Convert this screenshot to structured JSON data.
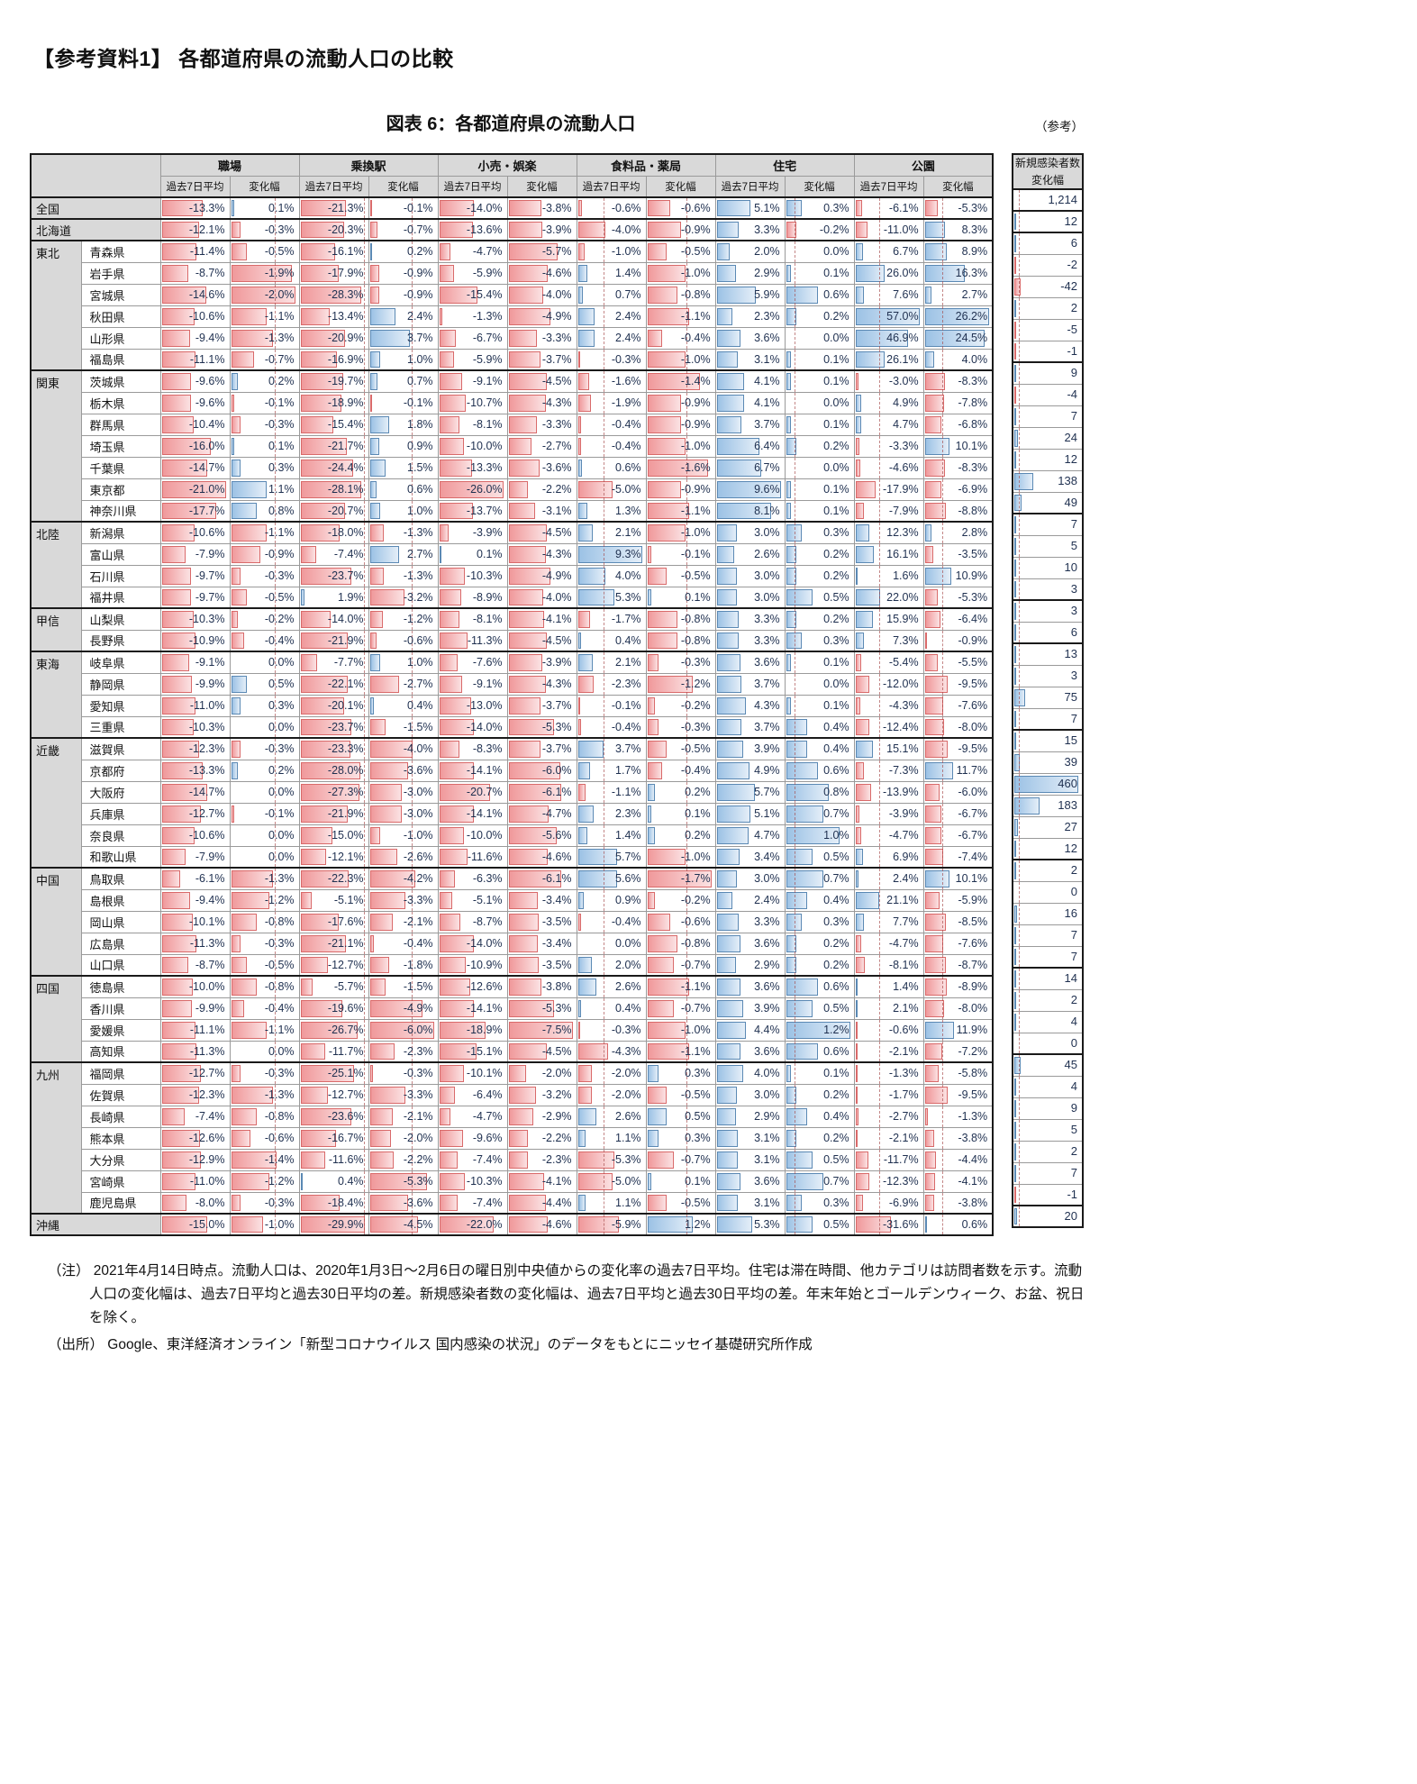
{
  "page": {
    "heading": "【参考資料1】 各都道府県の流動人口の比較",
    "figure_title": "図表 6：各都道府県の流動人口",
    "reference_label": "（参考）",
    "notes": {
      "note": "（注） 2021年4月14日時点。流動人口は、2020年1月3日～2月6日の曜日別中央値からの変化率の過去7日平均。住宅は滞在時間、他カテゴリは訪問者数を示す。流動人口の変化幅は、過去7日平均と過去30日平均の差。新規感染者数の変化幅は、過去7日平均と過去30日平均の差。年末年始とゴールデンウィーク、お盆、祝日を除く。",
      "source": "（出所） Google、東洋経済オンライン「新型コロナウイルス 国内感染の状況」のデータをもとにニッセイ基礎研究所作成"
    }
  },
  "colors": {
    "negative_bar_fill": "#f0999b",
    "negative_bar_border": "#d96a6a",
    "positive_bar_fill": "#9cc2e5",
    "positive_bar_border": "#5b89b4",
    "header_bg": "#d9d9d9",
    "value_text": "#1f3050"
  },
  "table": {
    "categories": [
      "職場",
      "乗換駅",
      "小売・娯楽",
      "食料品・薬局",
      "住宅",
      "公園"
    ],
    "sub_headers": [
      "過去7日平均",
      "変化幅"
    ],
    "infection_header_line1": "新規感染者数",
    "infection_header_line2": "変化幅",
    "regions": [
      {
        "region": "全国",
        "merged": true,
        "rows": [
          {
            "name": "全国",
            "values": [
              -13.3,
              0.1,
              -21.3,
              -0.1,
              -14.0,
              -3.8,
              -0.6,
              -0.6,
              5.1,
              0.3,
              -6.1,
              -5.3
            ],
            "infections": 1214
          }
        ]
      },
      {
        "region": "北海道",
        "merged": true,
        "rows": [
          {
            "name": "北海道",
            "values": [
              -12.1,
              -0.3,
              -20.3,
              -0.7,
              -13.6,
              -3.9,
              -4.0,
              -0.9,
              3.3,
              -0.2,
              -11.0,
              8.3
            ],
            "infections": 12
          }
        ]
      },
      {
        "region": "東北",
        "rows": [
          {
            "name": "青森県",
            "values": [
              -11.4,
              -0.5,
              -16.1,
              0.2,
              -4.7,
              -5.7,
              -1.0,
              -0.5,
              2.0,
              0.0,
              6.7,
              8.9
            ],
            "infections": 6
          },
          {
            "name": "岩手県",
            "values": [
              -8.7,
              -1.9,
              -17.9,
              -0.9,
              -5.9,
              -4.6,
              1.4,
              -1.0,
              2.9,
              0.1,
              26.0,
              16.3
            ],
            "infections": -2
          },
          {
            "name": "宮城県",
            "values": [
              -14.6,
              -2.0,
              -28.3,
              -0.9,
              -15.4,
              -4.0,
              0.7,
              -0.8,
              5.9,
              0.6,
              7.6,
              2.7
            ],
            "infections": -42
          },
          {
            "name": "秋田県",
            "values": [
              -10.6,
              -1.1,
              -13.4,
              2.4,
              -1.3,
              -4.9,
              2.4,
              -1.1,
              2.3,
              0.2,
              57.0,
              26.2
            ],
            "infections": 2
          },
          {
            "name": "山形県",
            "values": [
              -9.4,
              -1.3,
              -20.9,
              3.7,
              -6.7,
              -3.3,
              2.4,
              -0.4,
              3.6,
              0.0,
              46.9,
              24.5
            ],
            "infections": -5
          },
          {
            "name": "福島県",
            "values": [
              -11.1,
              -0.7,
              -16.9,
              1.0,
              -5.9,
              -3.7,
              -0.3,
              -1.0,
              3.1,
              0.1,
              26.1,
              4.0
            ],
            "infections": -1
          }
        ]
      },
      {
        "region": "関東",
        "rows": [
          {
            "name": "茨城県",
            "values": [
              -9.6,
              0.2,
              -19.7,
              0.7,
              -9.1,
              -4.5,
              -1.6,
              -1.4,
              4.1,
              0.1,
              -3.0,
              -8.3
            ],
            "infections": 9
          },
          {
            "name": "栃木県",
            "values": [
              -9.6,
              -0.1,
              -18.9,
              -0.1,
              -10.7,
              -4.3,
              -1.9,
              -0.9,
              4.1,
              0.0,
              4.9,
              -7.8
            ],
            "infections": -4
          },
          {
            "name": "群馬県",
            "values": [
              -10.4,
              -0.3,
              -15.4,
              1.8,
              -8.1,
              -3.3,
              -0.4,
              -0.9,
              3.7,
              0.1,
              4.7,
              -6.8
            ],
            "infections": 7
          },
          {
            "name": "埼玉県",
            "values": [
              -16.0,
              0.1,
              -21.7,
              0.9,
              -10.0,
              -2.7,
              -0.4,
              -1.0,
              6.4,
              0.2,
              -3.3,
              10.1
            ],
            "infections": 24
          },
          {
            "name": "千葉県",
            "values": [
              -14.7,
              0.3,
              -24.4,
              1.5,
              -13.3,
              -3.6,
              0.6,
              -1.6,
              6.7,
              0.0,
              -4.6,
              -8.3
            ],
            "infections": 12
          },
          {
            "name": "東京都",
            "values": [
              -21.0,
              1.1,
              -28.1,
              0.6,
              -26.0,
              -2.2,
              -5.0,
              -0.9,
              9.6,
              0.1,
              -17.9,
              -6.9
            ],
            "infections": 138
          },
          {
            "name": "神奈川県",
            "values": [
              -17.7,
              0.8,
              -20.7,
              1.0,
              -13.7,
              -3.1,
              1.3,
              -1.1,
              8.1,
              0.1,
              -7.9,
              -8.8
            ],
            "infections": 49
          }
        ]
      },
      {
        "region": "北陸",
        "rows": [
          {
            "name": "新潟県",
            "values": [
              -10.6,
              -1.1,
              -18.0,
              -1.3,
              -3.9,
              -4.5,
              2.1,
              -1.0,
              3.0,
              0.3,
              12.3,
              2.8
            ],
            "infections": 7
          },
          {
            "name": "富山県",
            "values": [
              -7.9,
              -0.9,
              -7.4,
              2.7,
              0.1,
              -4.3,
              9.3,
              -0.1,
              2.6,
              0.2,
              16.1,
              -3.5
            ],
            "infections": 5
          },
          {
            "name": "石川県",
            "values": [
              -9.7,
              -0.3,
              -23.7,
              -1.3,
              -10.3,
              -4.9,
              4.0,
              -0.5,
              3.0,
              0.2,
              1.6,
              10.9
            ],
            "infections": 10
          },
          {
            "name": "福井県",
            "values": [
              -9.7,
              -0.5,
              1.9,
              -3.2,
              -8.9,
              -4.0,
              5.3,
              0.1,
              3.0,
              0.5,
              22.0,
              -5.3
            ],
            "infections": 3
          }
        ]
      },
      {
        "region": "甲信",
        "rows": [
          {
            "name": "山梨県",
            "values": [
              -10.3,
              -0.2,
              -14.0,
              -1.2,
              -8.1,
              -4.1,
              -1.7,
              -0.8,
              3.3,
              0.2,
              15.9,
              -6.4
            ],
            "infections": 3
          },
          {
            "name": "長野県",
            "values": [
              -10.9,
              -0.4,
              -21.9,
              -0.6,
              -11.3,
              -4.5,
              0.4,
              -0.8,
              3.3,
              0.3,
              7.3,
              -0.9
            ],
            "infections": 6
          }
        ]
      },
      {
        "region": "東海",
        "rows": [
          {
            "name": "岐阜県",
            "values": [
              -9.1,
              0.0,
              -7.7,
              1.0,
              -7.6,
              -3.9,
              2.1,
              -0.3,
              3.6,
              0.1,
              -5.4,
              -5.5
            ],
            "infections": 13
          },
          {
            "name": "静岡県",
            "values": [
              -9.9,
              0.5,
              -22.1,
              -2.7,
              -9.1,
              -4.3,
              -2.3,
              -1.2,
              3.7,
              0.0,
              -12.0,
              -9.5
            ],
            "infections": 3
          },
          {
            "name": "愛知県",
            "values": [
              -11.0,
              0.3,
              -20.1,
              0.4,
              -13.0,
              -3.7,
              -0.1,
              -0.2,
              4.3,
              0.1,
              -4.3,
              -7.6
            ],
            "infections": 75
          },
          {
            "name": "三重県",
            "values": [
              -10.3,
              0.0,
              -23.7,
              -1.5,
              -14.0,
              -5.3,
              -0.4,
              -0.3,
              3.7,
              0.4,
              -12.4,
              -8.0
            ],
            "infections": 7
          }
        ]
      },
      {
        "region": "近畿",
        "rows": [
          {
            "name": "滋賀県",
            "values": [
              -12.3,
              -0.3,
              -23.3,
              -4.0,
              -8.3,
              -3.7,
              3.7,
              -0.5,
              3.9,
              0.4,
              15.1,
              -9.5
            ],
            "infections": 15
          },
          {
            "name": "京都府",
            "values": [
              -13.3,
              0.2,
              -28.0,
              -3.6,
              -14.1,
              -6.0,
              1.7,
              -0.4,
              4.9,
              0.6,
              -7.3,
              11.7
            ],
            "infections": 39
          },
          {
            "name": "大阪府",
            "values": [
              -14.7,
              0.0,
              -27.3,
              -3.0,
              -20.7,
              -6.1,
              -1.1,
              0.2,
              5.7,
              0.8,
              -13.9,
              -6.0
            ],
            "infections": 460
          },
          {
            "name": "兵庫県",
            "values": [
              -12.7,
              -0.1,
              -21.9,
              -3.0,
              -14.1,
              -4.7,
              2.3,
              0.1,
              5.1,
              0.7,
              -3.9,
              -6.7
            ],
            "infections": 183
          },
          {
            "name": "奈良県",
            "values": [
              -10.6,
              0.0,
              -15.0,
              -1.0,
              -10.0,
              -5.6,
              1.4,
              0.2,
              4.7,
              1.0,
              -4.7,
              -6.7
            ],
            "infections": 27
          },
          {
            "name": "和歌山県",
            "values": [
              -7.9,
              0.0,
              -12.1,
              -2.6,
              -11.6,
              -4.6,
              5.7,
              -1.0,
              3.4,
              0.5,
              6.9,
              -7.4
            ],
            "infections": 12
          }
        ]
      },
      {
        "region": "中国",
        "rows": [
          {
            "name": "鳥取県",
            "values": [
              -6.1,
              -1.3,
              -22.3,
              -4.2,
              -6.3,
              -6.1,
              5.6,
              -1.7,
              3.0,
              0.7,
              2.4,
              10.1
            ],
            "infections": 2
          },
          {
            "name": "島根県",
            "values": [
              -9.4,
              -1.2,
              -5.1,
              -3.3,
              -5.1,
              -3.4,
              0.9,
              -0.2,
              2.4,
              0.4,
              21.1,
              -5.9
            ],
            "infections": 0
          },
          {
            "name": "岡山県",
            "values": [
              -10.1,
              -0.8,
              -17.6,
              -2.1,
              -8.7,
              -3.5,
              -0.4,
              -0.6,
              3.3,
              0.3,
              7.7,
              -8.5
            ],
            "infections": 16
          },
          {
            "name": "広島県",
            "values": [
              -11.3,
              -0.3,
              -21.1,
              -0.4,
              -14.0,
              -3.4,
              0.0,
              -0.8,
              3.6,
              0.2,
              -4.7,
              -7.6
            ],
            "infections": 7
          },
          {
            "name": "山口県",
            "values": [
              -8.7,
              -0.5,
              -12.7,
              -1.8,
              -10.9,
              -3.5,
              2.0,
              -0.7,
              2.9,
              0.2,
              -8.1,
              -8.7
            ],
            "infections": 7
          }
        ]
      },
      {
        "region": "四国",
        "rows": [
          {
            "name": "徳島県",
            "values": [
              -10.0,
              -0.8,
              -5.7,
              -1.5,
              -12.6,
              -3.8,
              2.6,
              -1.1,
              3.6,
              0.6,
              1.4,
              -8.9
            ],
            "infections": 14
          },
          {
            "name": "香川県",
            "values": [
              -9.9,
              -0.4,
              -19.6,
              -4.9,
              -14.1,
              -5.3,
              0.4,
              -0.7,
              3.9,
              0.5,
              2.1,
              -8.0
            ],
            "infections": 2
          },
          {
            "name": "愛媛県",
            "values": [
              -11.1,
              -1.1,
              -26.7,
              -6.0,
              -18.9,
              -7.5,
              -0.3,
              -1.0,
              4.4,
              1.2,
              -0.6,
              11.9
            ],
            "infections": 4
          },
          {
            "name": "高知県",
            "values": [
              -11.3,
              0.0,
              -11.7,
              -2.3,
              -15.1,
              -4.5,
              -4.3,
              -1.1,
              3.6,
              0.6,
              -2.1,
              -7.2
            ],
            "infections": 0
          }
        ]
      },
      {
        "region": "九州",
        "rows": [
          {
            "name": "福岡県",
            "values": [
              -12.7,
              -0.3,
              -25.1,
              -0.3,
              -10.1,
              -2.0,
              -2.0,
              0.3,
              4.0,
              0.1,
              -1.3,
              -5.8
            ],
            "infections": 45
          },
          {
            "name": "佐賀県",
            "values": [
              -12.3,
              -1.3,
              -12.7,
              -3.3,
              -6.4,
              -3.2,
              -2.0,
              -0.5,
              3.0,
              0.2,
              -1.7,
              -9.5
            ],
            "infections": 4
          },
          {
            "name": "長崎県",
            "values": [
              -7.4,
              -0.8,
              -23.6,
              -2.1,
              -4.7,
              -2.9,
              2.6,
              0.5,
              2.9,
              0.4,
              -2.7,
              -1.3
            ],
            "infections": 9
          },
          {
            "name": "熊本県",
            "values": [
              -12.6,
              -0.6,
              -16.7,
              -2.0,
              -9.6,
              -2.2,
              1.1,
              0.3,
              3.1,
              0.2,
              -2.1,
              -3.8
            ],
            "infections": 5
          },
          {
            "name": "大分県",
            "values": [
              -12.9,
              -1.4,
              -11.6,
              -2.2,
              -7.4,
              -2.3,
              -5.3,
              -0.7,
              3.1,
              0.5,
              -11.7,
              -4.4
            ],
            "infections": 2
          },
          {
            "name": "宮崎県",
            "values": [
              -11.0,
              -1.2,
              0.4,
              -5.3,
              -10.3,
              -4.1,
              -5.0,
              0.1,
              3.6,
              0.7,
              -12.3,
              -4.1
            ],
            "infections": 7
          },
          {
            "name": "鹿児島県",
            "values": [
              -8.0,
              -0.3,
              -18.4,
              -3.6,
              -7.4,
              -4.4,
              1.1,
              -0.5,
              3.1,
              0.3,
              -6.9,
              -3.8
            ],
            "infections": -1
          }
        ]
      },
      {
        "region": "沖縄",
        "merged": true,
        "rows": [
          {
            "name": "沖縄",
            "values": [
              -15.0,
              -1.0,
              -29.9,
              -4.5,
              -22.0,
              -4.6,
              -5.9,
              1.2,
              5.3,
              0.5,
              -31.6,
              0.6
            ],
            "infections": 20
          }
        ]
      }
    ]
  },
  "chart_data": {
    "type": "table",
    "title": "図表 6：各都道府県の流動人口",
    "legend_note": "red bar = negative, blue bar = positive (Excel-style data bars)",
    "columns": [
      "職場 過去7日平均",
      "職場 変化幅",
      "乗換駅 過去7日平均",
      "乗換駅 変化幅",
      "小売・娯楽 過去7日平均",
      "小売・娯楽 変化幅",
      "食料品・薬局 過去7日平均",
      "食料品・薬局 変化幅",
      "住宅 過去7日平均",
      "住宅 変化幅",
      "公園 過去7日平均",
      "公園 変化幅",
      "新規感染者数 変化幅"
    ]
  }
}
